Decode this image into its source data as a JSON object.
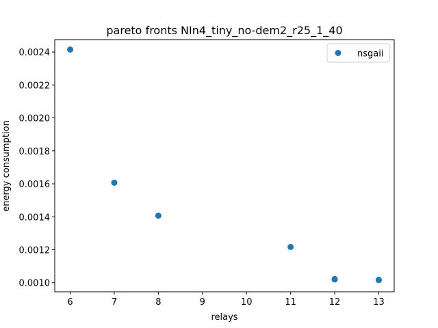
{
  "chart_data": {
    "type": "scatter",
    "title": "pareto fronts NIn4_tiny_no-dem2_r25_1_40",
    "xlabel": "relays",
    "ylabel": "energy consumption",
    "xlim": [
      5.65,
      13.35
    ],
    "ylim": [
      0.000945,
      0.002475
    ],
    "xticks": [
      6,
      7,
      8,
      9,
      10,
      11,
      12,
      13
    ],
    "xtick_labels": [
      "6",
      "7",
      "8",
      "9",
      "10",
      "11",
      "12",
      "13"
    ],
    "yticks": [
      0.001,
      0.0012,
      0.0014,
      0.0016,
      0.0018,
      0.002,
      0.0022,
      0.0024
    ],
    "ytick_labels": [
      "0.0010",
      "0.0012",
      "0.0014",
      "0.0016",
      "0.0018",
      "0.0020",
      "0.0022",
      "0.0024"
    ],
    "grid": false,
    "legend_position": "top-right",
    "series": [
      {
        "name": "nsgaii",
        "color": "#1f77b4",
        "x": [
          6,
          7,
          8,
          11,
          12,
          12,
          13,
          13
        ],
        "y": [
          0.002415,
          0.001607,
          0.001407,
          0.001217,
          0.001022,
          0.00102,
          0.001018,
          0.001016
        ]
      }
    ]
  }
}
